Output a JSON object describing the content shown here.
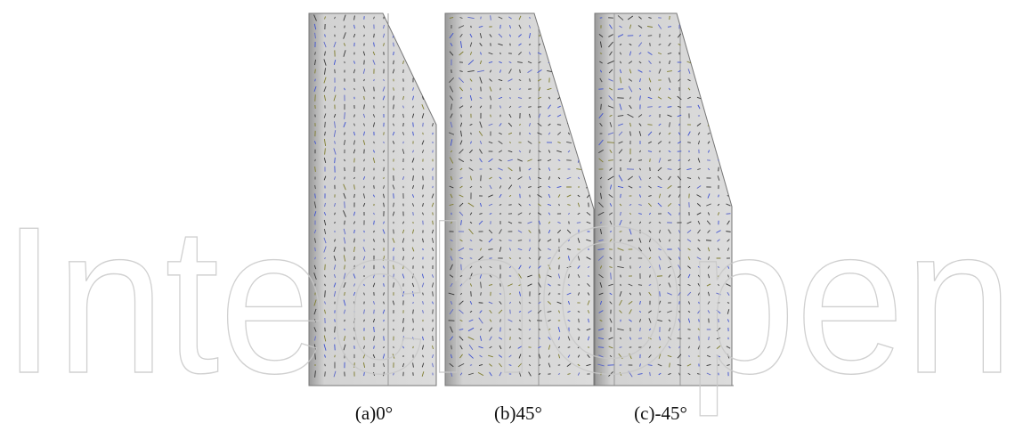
{
  "figure": {
    "panels": [
      {
        "caption": "(a)0°"
      },
      {
        "caption": "(b)45°"
      },
      {
        "caption": "(c)-45°"
      }
    ],
    "watermark": "IntechOpen"
  }
}
